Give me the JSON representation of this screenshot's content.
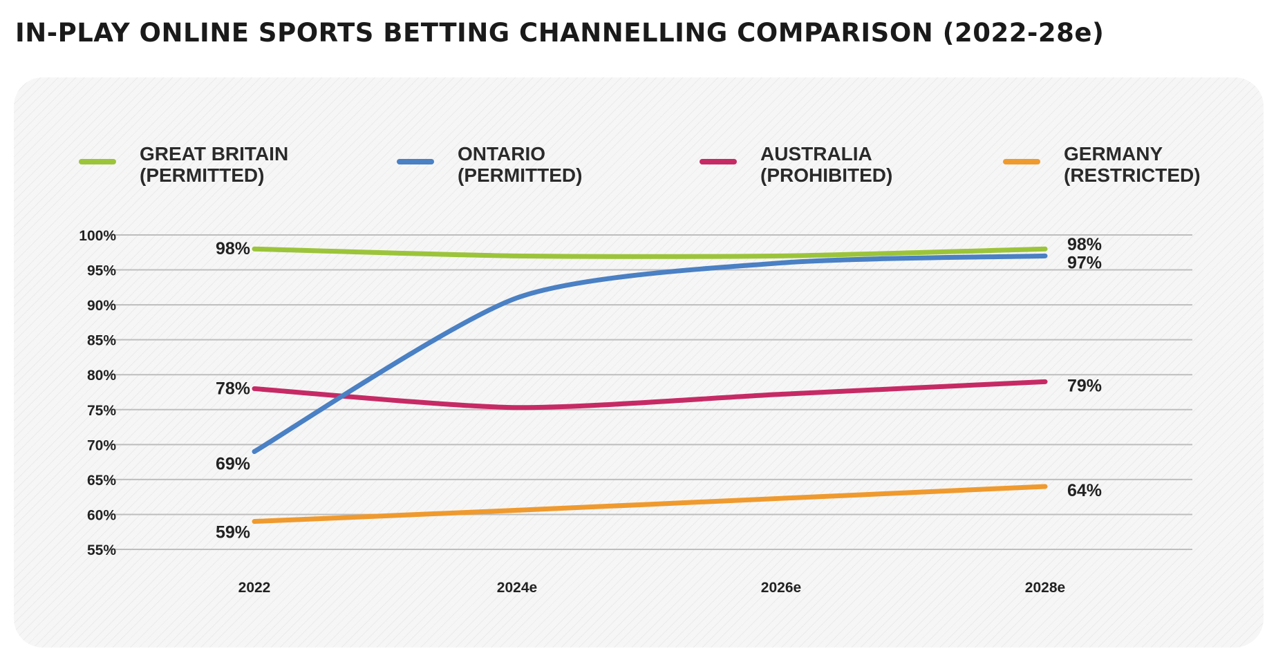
{
  "chart_data": {
    "type": "line",
    "title": "IN-PLAY ONLINE SPORTS BETTING CHANNELLING COMPARISON (2022-28e)",
    "categories": [
      "2022",
      "2024e",
      "2026e",
      "2028e"
    ],
    "y_ticks": [
      "100%",
      "95%",
      "90%",
      "85%",
      "80%",
      "75%",
      "70%",
      "65%",
      "60%",
      "55%"
    ],
    "ylim": [
      55,
      100
    ],
    "grid": true,
    "legend_position": "top",
    "series": [
      {
        "name_line1": "GREAT BRITAIN",
        "name_line2": "(PERMITTED)",
        "color": "#9cc43a",
        "values": [
          98,
          97,
          97,
          98
        ],
        "start_label": "98%",
        "end_label": "98%"
      },
      {
        "name_line1": "ONTARIO",
        "name_line2": "(PERMITTED)",
        "color": "#4a80c4",
        "values": [
          69,
          91,
          96,
          97
        ],
        "start_label": "69%",
        "end_label": "97%"
      },
      {
        "name_line1": "AUSTRALIA",
        "name_line2": "(PROHIBITED)",
        "color": "#c62a64",
        "values": [
          78,
          75.3,
          77.2,
          79
        ],
        "start_label": "78%",
        "end_label": "79%"
      },
      {
        "name_line1": "GERMANY",
        "name_line2": "(RESTRICTED)",
        "color": "#ef9a2e",
        "values": [
          59,
          60.6,
          62.3,
          64
        ],
        "start_label": "59%",
        "end_label": "64%"
      }
    ]
  }
}
